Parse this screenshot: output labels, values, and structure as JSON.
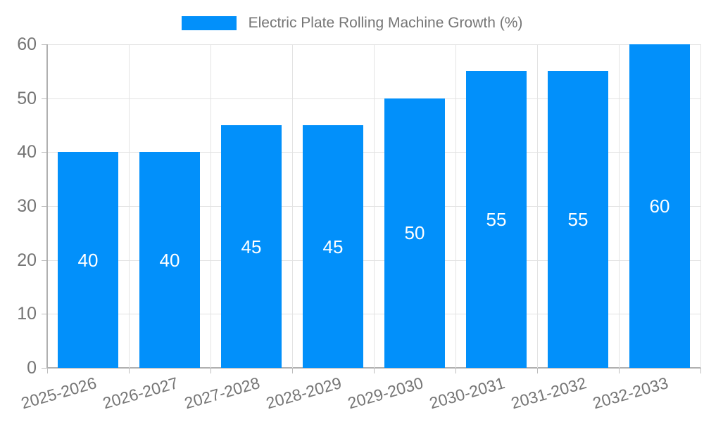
{
  "legend": {
    "label": "Electric Plate Rolling Machine Growth (%)",
    "swatch_color": "#0290fa"
  },
  "chart_data": {
    "type": "bar",
    "title": "Electric Plate Rolling Machine Growth (%)",
    "categories": [
      "2025-2026",
      "2026-2027",
      "2027-2028",
      "2028-2029",
      "2029-2030",
      "2030-2031",
      "2031-2032",
      "2032-2033"
    ],
    "values": [
      40,
      40,
      45,
      45,
      50,
      55,
      55,
      60
    ],
    "xlabel": "",
    "ylabel": "",
    "ylim": [
      0,
      60
    ],
    "yticks": [
      0,
      10,
      20,
      30,
      40,
      50,
      60
    ],
    "grid": true,
    "legend_position": "top",
    "bar_color": "#0290fa",
    "value_label_color": "#ffffff",
    "axis_text_color": "#757575",
    "grid_color": "#e3e3e3",
    "axis_line_color": "#b0b0b0"
  }
}
